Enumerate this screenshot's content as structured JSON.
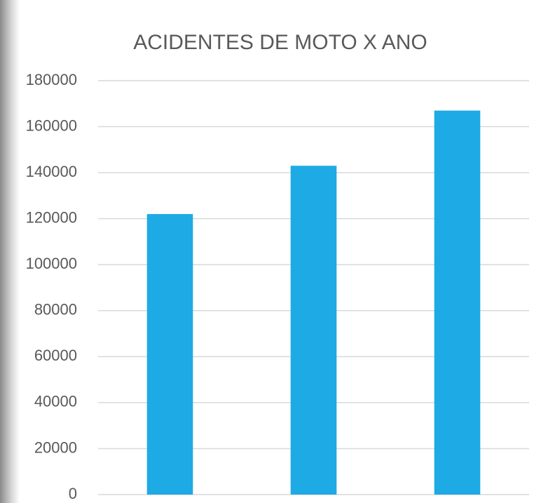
{
  "chart_data": {
    "type": "bar",
    "title": "ACIDENTES DE MOTO X ANO",
    "categories": [
      null,
      null,
      null
    ],
    "values": [
      122000,
      143000,
      167000
    ],
    "color": "#1eaae4",
    "ylim": [
      0,
      180000
    ],
    "yticks": [
      0,
      20000,
      40000,
      60000,
      80000,
      100000,
      120000,
      140000,
      160000,
      180000
    ],
    "grid": true
  }
}
